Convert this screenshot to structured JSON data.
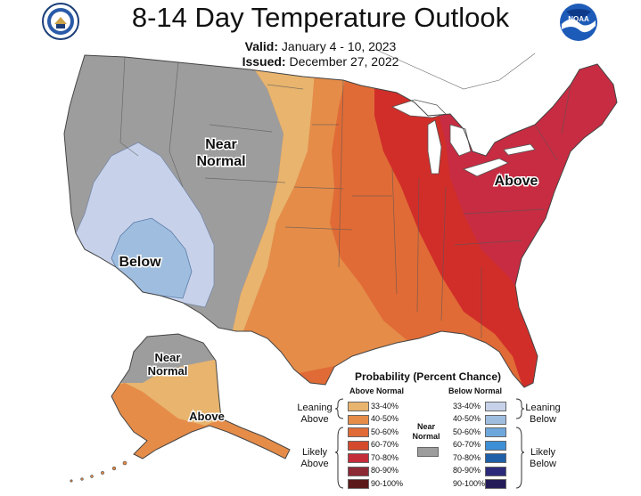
{
  "header": {
    "title": "8-14 Day Temperature Outlook",
    "valid_label": "Valid:",
    "valid_value": "January 4 - 10, 2023",
    "issued_label": "Issued:",
    "issued_value": "December 27, 2022"
  },
  "logos": {
    "left": "doc-seal-icon",
    "right": "noaa-logo-icon",
    "noaa_text": "NOAA"
  },
  "map_labels": {
    "near_normal_conus_line1": "Near",
    "near_normal_conus_line2": "Normal",
    "below_conus": "Below",
    "above_conus": "Above",
    "near_normal_ak_line1": "Near",
    "near_normal_ak_line2": "Normal",
    "above_ak": "Above"
  },
  "legend": {
    "title": "Probability (Percent Chance)",
    "above_header": "Above Normal",
    "below_header": "Below Normal",
    "near_normal_line1": "Near",
    "near_normal_line2": "Normal",
    "leaning_above_line1": "Leaning",
    "leaning_above_line2": "Above",
    "likely_above_line1": "Likely",
    "likely_above_line2": "Above",
    "leaning_below_line1": "Leaning",
    "leaning_below_line2": "Below",
    "likely_below_line1": "Likely",
    "likely_below_line2": "Below",
    "above_rows": [
      {
        "label": "33-40%",
        "color": "#e8b46e"
      },
      {
        "label": "40-50%",
        "color": "#e58c49"
      },
      {
        "label": "50-60%",
        "color": "#e06b36"
      },
      {
        "label": "60-70%",
        "color": "#d44a2c"
      },
      {
        "label": "70-80%",
        "color": "#c52c3a"
      },
      {
        "label": "80-90%",
        "color": "#8c2a35"
      },
      {
        "label": "90-100%",
        "color": "#5a1a1a"
      }
    ],
    "below_rows": [
      {
        "label": "33-40%",
        "color": "#c7d2ea"
      },
      {
        "label": "40-50%",
        "color": "#9fbedf"
      },
      {
        "label": "50-60%",
        "color": "#6ea7dc"
      },
      {
        "label": "60-70%",
        "color": "#3d8fd6"
      },
      {
        "label": "70-80%",
        "color": "#1f5fa8"
      },
      {
        "label": "80-90%",
        "color": "#2b2a7a"
      },
      {
        "label": "90-100%",
        "color": "#241c58"
      }
    ],
    "near_normal_color": "#9d9d9d"
  }
}
